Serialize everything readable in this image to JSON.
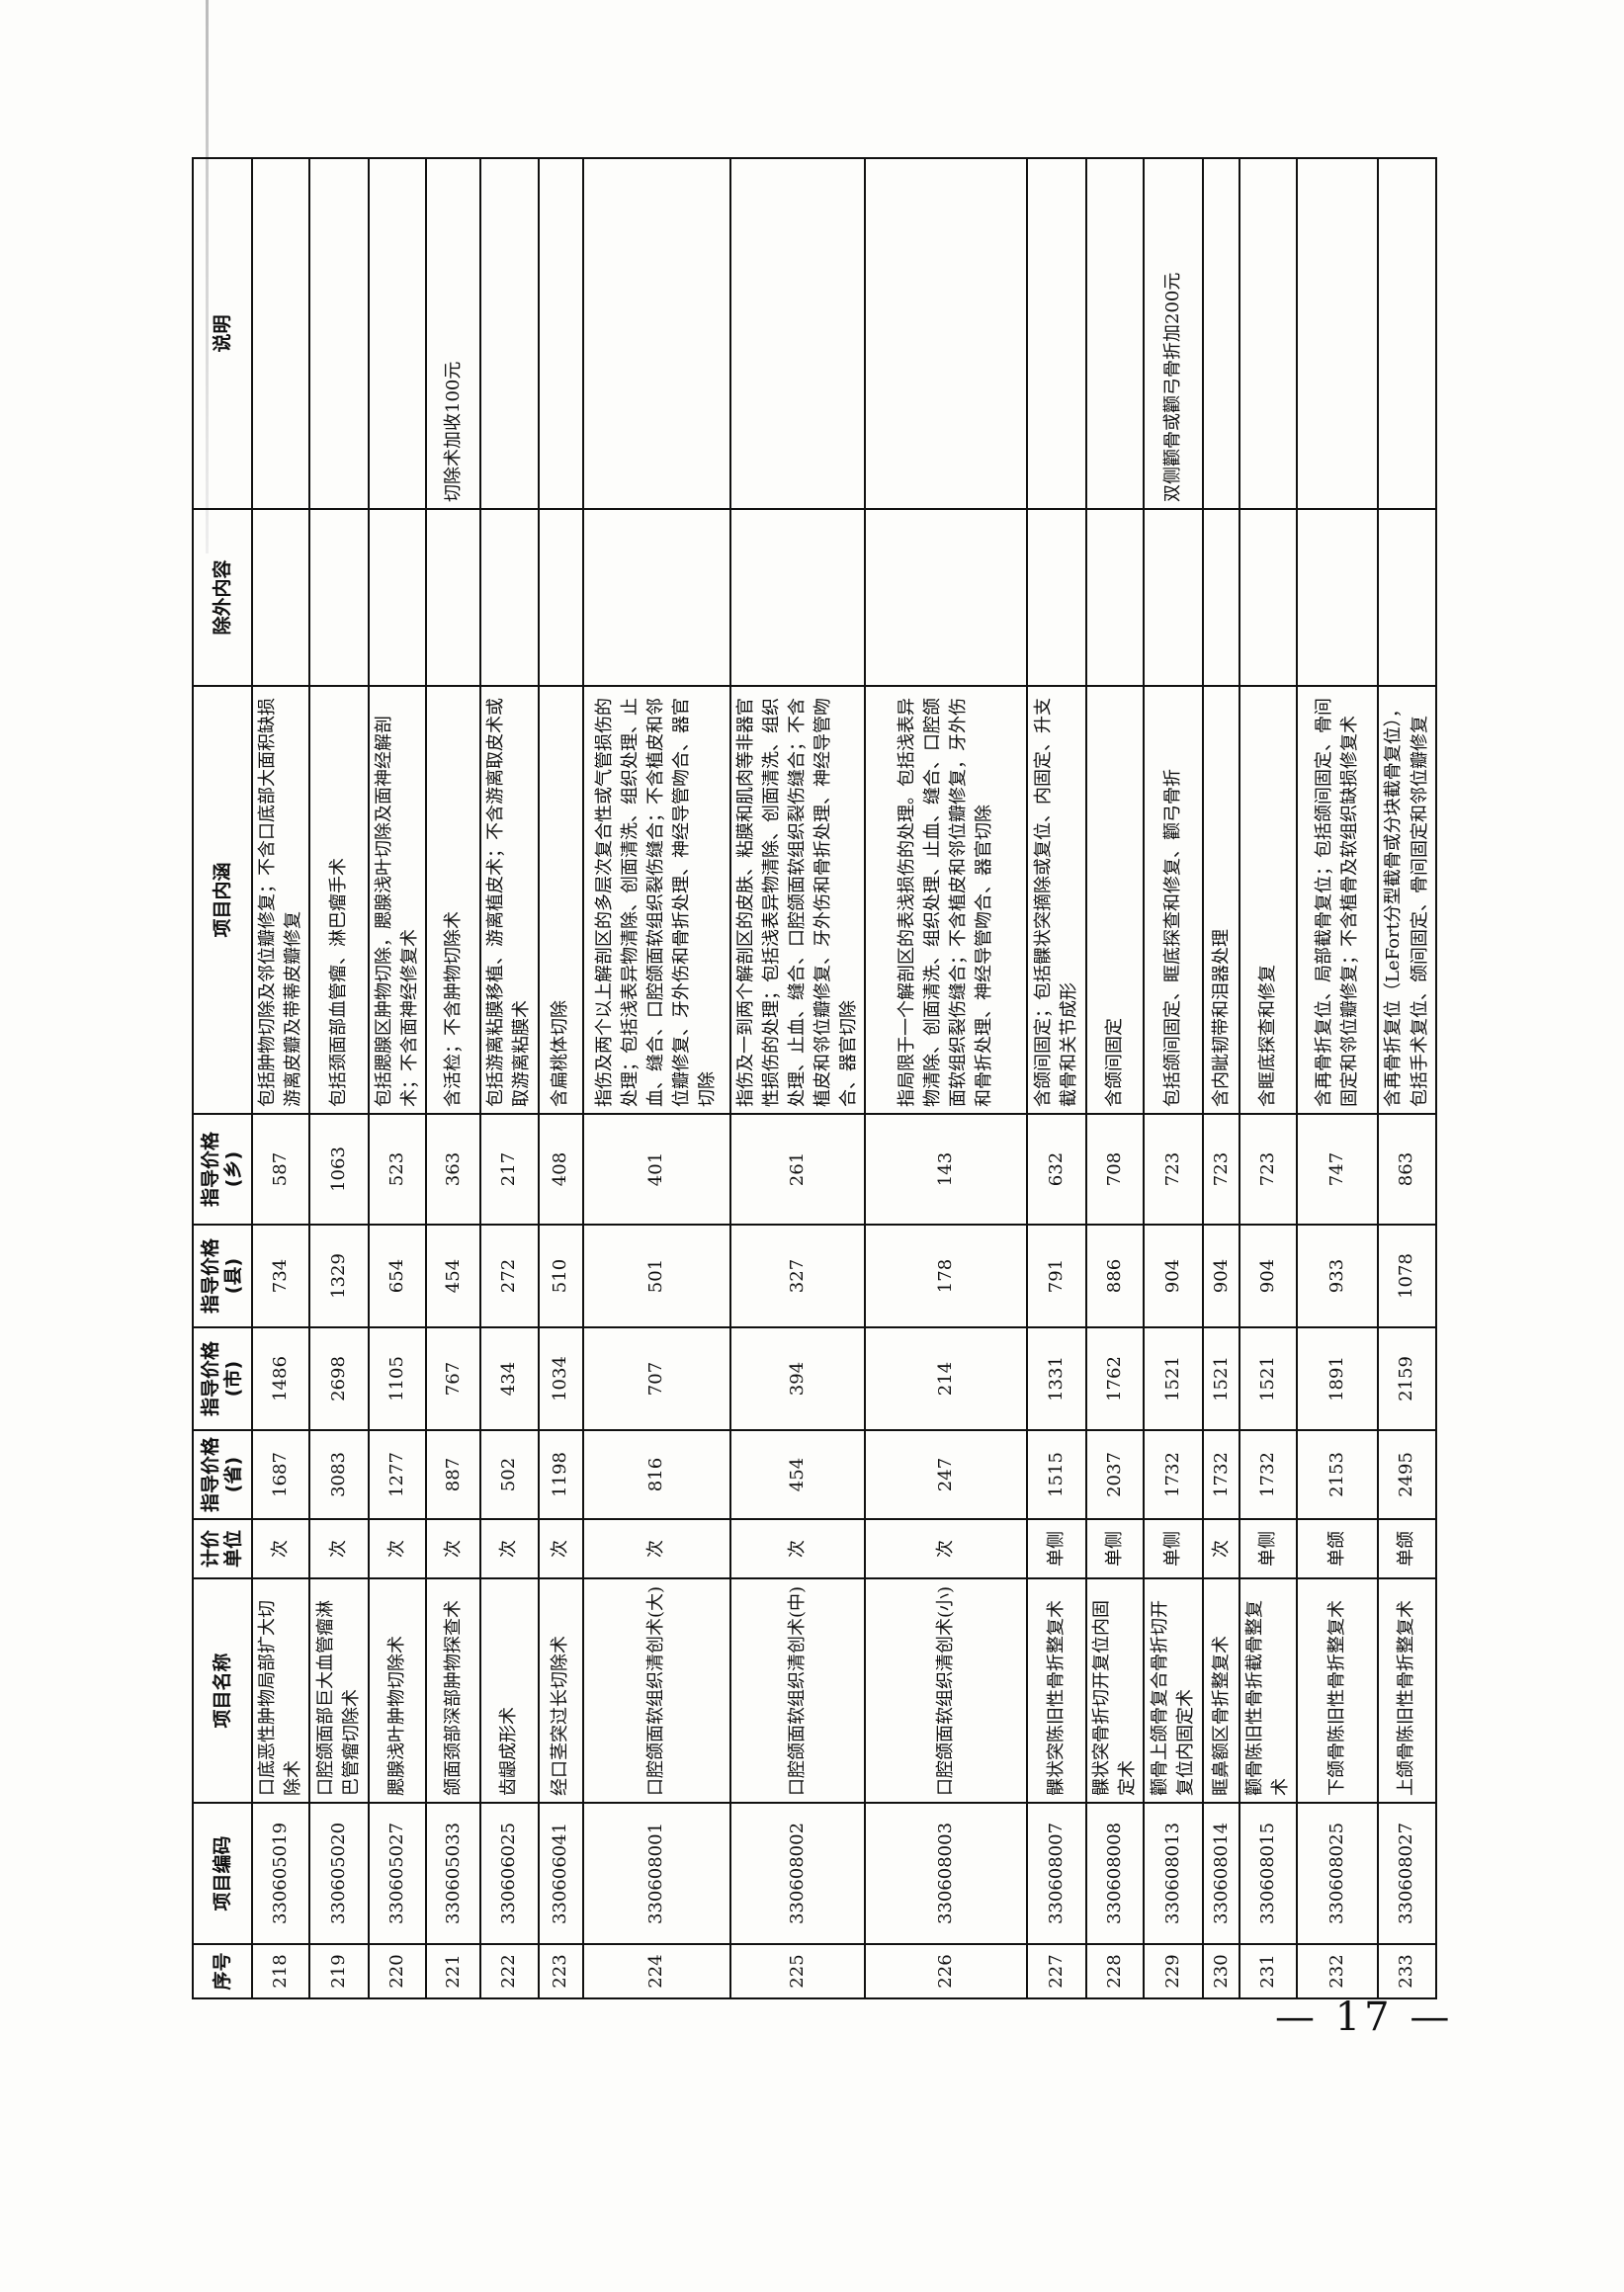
{
  "headers": {
    "seq": "序号",
    "code": "项目编码",
    "name": "项目名称",
    "unit": "计价单位",
    "price_prov": "指导价格(省)",
    "price_city": "指导价格(市)",
    "price_county": "指导价格(县)",
    "price_town": "指导价格(乡)",
    "content": "项目内涵",
    "exclusion": "除外内容",
    "note": "说明"
  },
  "rows": [
    {
      "seq": "218",
      "code": "330605019",
      "name": "口底恶性肿物局部扩大切除术",
      "unit": "次",
      "prov": "1687",
      "city": "1486",
      "county": "734",
      "town": "587",
      "content": "包括肿物切除及邻位瓣修复；不含口底部大面积缺损游离皮瓣及带蒂皮瓣修复",
      "exclusion": "",
      "note": ""
    },
    {
      "seq": "219",
      "code": "330605020",
      "name": "口腔颌面部巨大血管瘤淋巴管瘤切除术",
      "unit": "次",
      "prov": "3083",
      "city": "2698",
      "county": "1329",
      "town": "1063",
      "content": "包括颈面部血管瘤、淋巴瘤手术",
      "exclusion": "",
      "note": ""
    },
    {
      "seq": "220",
      "code": "330605027",
      "name": "腮腺浅叶肿物切除术",
      "unit": "次",
      "prov": "1277",
      "city": "1105",
      "county": "654",
      "town": "523",
      "content": "包括腮腺区肿物切除，腮腺浅叶切除及面神经解剖术；不含面神经修复术",
      "exclusion": "",
      "note": ""
    },
    {
      "seq": "221",
      "code": "330605033",
      "name": "颌面颈部深部肿物探查术",
      "unit": "次",
      "prov": "887",
      "city": "767",
      "county": "454",
      "town": "363",
      "content": "含活检；不含肿物切除术",
      "exclusion": "",
      "note": "切除术加收100元"
    },
    {
      "seq": "222",
      "code": "330606025",
      "name": "齿龈成形术",
      "unit": "次",
      "prov": "502",
      "city": "434",
      "county": "272",
      "town": "217",
      "content": "包括游离粘膜移植、游离植皮术；不含游离取皮术或取游离粘膜术",
      "exclusion": "",
      "note": ""
    },
    {
      "seq": "223",
      "code": "330606041",
      "name": "经口茎突过长切除术",
      "unit": "次",
      "prov": "1198",
      "city": "1034",
      "county": "510",
      "town": "408",
      "content": "含扁桃体切除",
      "exclusion": "",
      "note": ""
    },
    {
      "seq": "224",
      "code": "330608001",
      "name": "口腔颌面软组织清创术(大)",
      "unit": "次",
      "prov": "816",
      "city": "707",
      "county": "501",
      "town": "401",
      "content": "指伤及两个以上解剖区的多层次复合性或气管损伤的处理；包括浅表异物清除、创面清洗、组织处理、止血、缝合、口腔颌面软组织裂伤缝合；不含植皮和邻位瓣修复、牙外伤和骨折处理、神经导管吻合、器官切除",
      "exclusion": "",
      "note": ""
    },
    {
      "seq": "225",
      "code": "330608002",
      "name": "口腔颌面软组织清创术(中)",
      "unit": "次",
      "prov": "454",
      "city": "394",
      "county": "327",
      "town": "261",
      "content": "指伤及一到两个解剖区的皮肤、粘膜和肌肉等非器官性损伤的处理；包括浅表异物清除、创面清洗、组织处理、止血、缝合、口腔颌面软组织裂伤缝合；不含植皮和邻位瓣修复、牙外伤和骨折处理、神经导管吻合、器官切除",
      "exclusion": "",
      "note": ""
    },
    {
      "seq": "226",
      "code": "330608003",
      "name": "口腔颌面软组织清创术(小)",
      "unit": "次",
      "prov": "247",
      "city": "214",
      "county": "178",
      "town": "143",
      "content": "指局限于一个解剖区的表浅损伤的处理。包括浅表异物清除、创面清洗、组织处理、止血、缝合、口腔颌面软组织裂伤缝合；不含植皮和邻位瓣修复，牙外伤和骨折处理、神经导管吻合、器官切除",
      "exclusion": "",
      "note": ""
    },
    {
      "seq": "227",
      "code": "330608007",
      "name": "髁状突陈旧性骨折整复术",
      "unit": "单侧",
      "prov": "1515",
      "city": "1331",
      "county": "791",
      "town": "632",
      "content": "含颌间固定；包括髁状突摘除或复位、内固定、升支截骨和关节成形",
      "exclusion": "",
      "note": ""
    },
    {
      "seq": "228",
      "code": "330608008",
      "name": "髁状突骨折切开复位内固定术",
      "unit": "单侧",
      "prov": "2037",
      "city": "1762",
      "county": "886",
      "town": "708",
      "content": "含颌间固定",
      "exclusion": "",
      "note": ""
    },
    {
      "seq": "229",
      "code": "330608013",
      "name": "颧骨上颌骨复合骨折切开复位内固定术",
      "unit": "单侧",
      "prov": "1732",
      "city": "1521",
      "county": "904",
      "town": "723",
      "content": "包括颌间固定、眶底探查和修复、颧弓骨折",
      "exclusion": "",
      "note": "双侧颧骨或颧弓骨折加200元"
    },
    {
      "seq": "230",
      "code": "330608014",
      "name": "眶鼻额区骨折整复术",
      "unit": "次",
      "prov": "1732",
      "city": "1521",
      "county": "904",
      "town": "723",
      "content": "含内眦韧带和泪器处理",
      "exclusion": "",
      "note": ""
    },
    {
      "seq": "231",
      "code": "330608015",
      "name": "颧骨陈旧性骨折截骨整复术",
      "unit": "单侧",
      "prov": "1732",
      "city": "1521",
      "county": "904",
      "town": "723",
      "content": "含眶底探查和修复",
      "exclusion": "",
      "note": ""
    },
    {
      "seq": "232",
      "code": "330608025",
      "name": "下颌骨陈旧性骨折整复术",
      "unit": "单颌",
      "prov": "2153",
      "city": "1891",
      "county": "933",
      "town": "747",
      "content": "含再骨折复位、局部截骨复位；包括颌间固定、骨间固定和邻位瓣修复；不含植骨及软组织缺损修复术",
      "exclusion": "",
      "note": ""
    },
    {
      "seq": "233",
      "code": "330608027",
      "name": "上颌骨陈旧性骨折整复术",
      "unit": "单颌",
      "prov": "2495",
      "city": "2159",
      "county": "1078",
      "town": "863",
      "content": "含再骨折复位（LeFort分型截骨或分块截骨复位），包括手术复位、颌间固定、骨间固定和邻位瓣修复",
      "exclusion": "",
      "note": ""
    }
  ],
  "page_number": "— 17 —"
}
